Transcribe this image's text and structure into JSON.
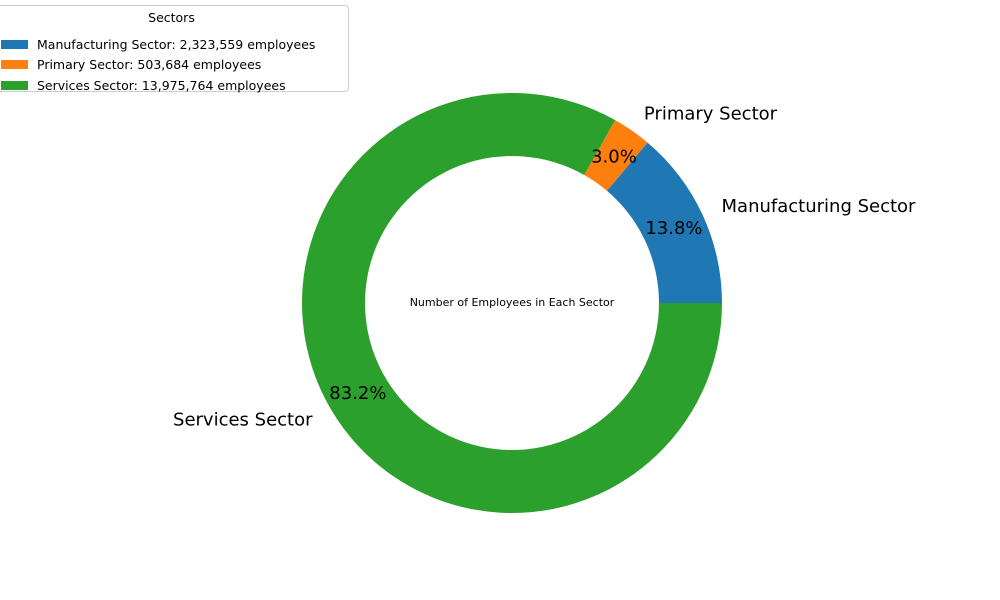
{
  "chart_data": {
    "type": "pie",
    "style": "donut",
    "center_text": "Number of Employees in Each Sector",
    "slices": [
      {
        "label": "Manufacturing Sector",
        "value": 2323559,
        "percent_label": "13.8%",
        "color": "#1f77b4"
      },
      {
        "label": "Primary Sector",
        "value": 503684,
        "percent_label": "3.0%",
        "color": "#ff7f0e"
      },
      {
        "label": "Services Sector",
        "value": 13975764,
        "percent_label": "83.2%",
        "color": "#2ca02c"
      }
    ],
    "legend": {
      "title": "Sectors",
      "placement": "top-left",
      "entries": [
        {
          "text": "Manufacturing Sector: 2,323,559 employees",
          "color": "#1f77b4"
        },
        {
          "text": "Primary Sector: 503,684 employees",
          "color": "#ff7f0e"
        },
        {
          "text": "Services Sector: 13,975,764 employees",
          "color": "#2ca02c"
        }
      ]
    }
  }
}
